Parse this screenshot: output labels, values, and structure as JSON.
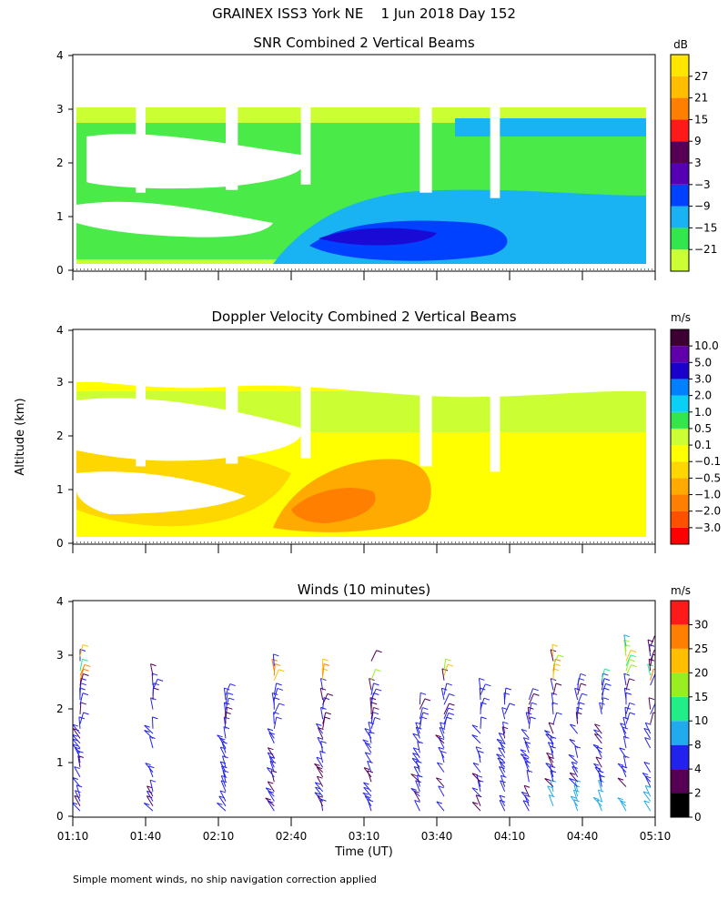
{
  "figure_title": "GRAINEX ISS3 York NE    1 Jun 2018 Day 152",
  "shared_ylabel": "Altitude (km)",
  "xlabel": "Time (UT)",
  "footnote": "Simple moment winds, no ship navigation correction applied",
  "colors": {
    "snr": [
      "#ccff33",
      "#33e64d",
      "#19b2f2",
      "#0040ff",
      "#5500b3",
      "#550055",
      "#ff1a1a",
      "#ff7f00",
      "#ffbf00",
      "#ffe600"
    ],
    "velocity": [
      "#ff0000",
      "#ff5000",
      "#ff8000",
      "#ffaa00",
      "#ffd700",
      "#ffff00",
      "#ccff33",
      "#33e64d",
      "#0ad0f5",
      "#0080ff",
      "#1b00cc",
      "#6000aa",
      "#3d0033"
    ],
    "winds": [
      "#000000",
      "#550055",
      "#2222ee",
      "#22aaee",
      "#22ee88",
      "#99ee22",
      "#ffbf00",
      "#ff7f00",
      "#ff1a1a"
    ]
  },
  "chart_data": [
    {
      "type": "heatmap",
      "title": "SNR Combined 2 Vertical Beams",
      "colorbar_unit": "dB",
      "colorbar_ticks": [
        "27",
        "21",
        "15",
        "9",
        "3",
        "−3",
        "−9",
        "−15",
        "−21"
      ],
      "x_range": [
        "01:10",
        "05:10"
      ],
      "xlim_minutes": [
        0,
        240
      ],
      "ylim": [
        0,
        4
      ],
      "yticks": [
        "0",
        "1",
        "2",
        "3",
        "4"
      ],
      "data_gaps": [
        {
          "t0": 26,
          "t1": 30,
          "below_km": 1.45
        },
        {
          "t0": 63,
          "t1": 68,
          "below_km": 1.5
        },
        {
          "t0": 94,
          "t1": 98,
          "below_km": 1.6
        },
        {
          "t0": 143,
          "t1": 148,
          "below_km": 1.45
        },
        {
          "t0": 172,
          "t1": 176,
          "below_km": 1.35
        }
      ]
    },
    {
      "type": "heatmap",
      "title": "Doppler Velocity Combined 2 Vertical Beams",
      "colorbar_unit": "m/s",
      "colorbar_ticks": [
        "10.0",
        "5.0",
        "3.0",
        "2.0",
        "1.0",
        "0.5",
        "0.1",
        "−0.1",
        "−0.5",
        "−1.0",
        "−2.0",
        "−3.0"
      ],
      "x_range": [
        "01:10",
        "05:10"
      ],
      "xlim_minutes": [
        0,
        240
      ],
      "ylim": [
        0,
        4
      ],
      "yticks": [
        "0",
        "1",
        "2",
        "3",
        "4"
      ]
    },
    {
      "type": "scatter",
      "subtype": "wind-barbs",
      "title": "Winds (10 minutes)",
      "colorbar_unit": "m/s",
      "colorbar_ticks": [
        "30",
        "25",
        "20",
        "15",
        "10",
        "8",
        "4",
        "2",
        "0"
      ],
      "xlim_minutes": [
        0,
        240
      ],
      "ylim": [
        0,
        4
      ],
      "yticks": [
        "0",
        "1",
        "2",
        "3",
        "4"
      ],
      "xticks": [
        "01:10",
        "01:40",
        "02:10",
        "02:40",
        "03:10",
        "03:40",
        "04:10",
        "04:40",
        "05:10"
      ],
      "profile_times_minutes": [
        0,
        30,
        60,
        80,
        100,
        120,
        140,
        150,
        165,
        175,
        185,
        195,
        205,
        215,
        225,
        235
      ]
    }
  ]
}
